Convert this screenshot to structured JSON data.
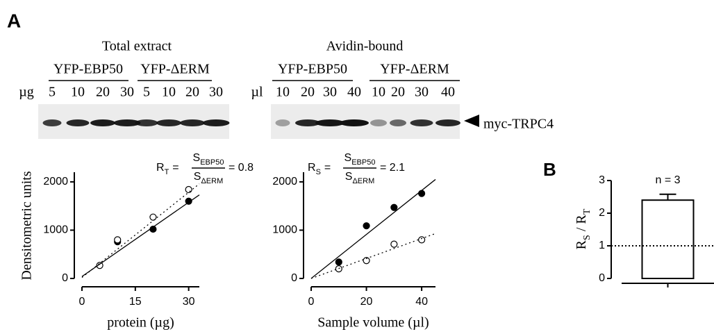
{
  "panels": [
    "A",
    "B"
  ],
  "blot_label": "myc-TRPC4",
  "blots": [
    {
      "title": "Total extract",
      "unit": "µg",
      "groups": [
        {
          "name": "YFP-EBP50",
          "lanes": [
            "5",
            "10",
            "20",
            "30"
          ]
        },
        {
          "name": "YFP-ΔERM",
          "lanes": [
            "5",
            "10",
            "20",
            "30"
          ]
        }
      ]
    },
    {
      "title": "Avidin-bound",
      "unit": "µl",
      "groups": [
        {
          "name": "YFP-EBP50",
          "lanes": [
            "10",
            "20",
            "30",
            "40"
          ]
        },
        {
          "name": "YFP-ΔERM",
          "lanes": [
            "10",
            "20",
            "30",
            "40"
          ]
        }
      ]
    }
  ],
  "chart_data": [
    {
      "type": "scatter",
      "xlabel": "protein (µg)",
      "ylabel": "Densitometric units",
      "xlim": [
        0,
        33
      ],
      "xticks": [
        0,
        15,
        30
      ],
      "ylim": [
        0,
        2200
      ],
      "yticks": [
        0,
        1000,
        2000
      ],
      "equation": {
        "lhs": "R",
        "lhs_sub": "T",
        "eq": "=",
        "num": "S",
        "num_sub": "EBP50",
        "den": "S",
        "den_sub": "ΔERM",
        "result": "= 0.8"
      },
      "series": [
        {
          "color": "#000000",
          "marker": "filled",
          "x": [
            10,
            20,
            30
          ],
          "values": [
            760,
            1020,
            1600
          ]
        },
        {
          "color": "#000000",
          "marker": "open",
          "x": [
            5,
            10,
            20,
            30
          ],
          "values": [
            270,
            800,
            1270,
            1840
          ]
        },
        {
          "color": "#000000",
          "marker": "none",
          "dash": false,
          "x": [
            0,
            33
          ],
          "values": [
            40,
            1730
          ]
        },
        {
          "color": "#000000",
          "marker": "none",
          "dash": true,
          "x": [
            0,
            33
          ],
          "values": [
            20,
            1960
          ]
        }
      ]
    },
    {
      "type": "scatter",
      "xlabel": "Sample volume (µl)",
      "xlim": [
        0,
        45
      ],
      "xticks": [
        0,
        20,
        40
      ],
      "ylim": [
        0,
        2200
      ],
      "yticks": [
        0,
        1000,
        2000
      ],
      "equation": {
        "lhs": "R",
        "lhs_sub": "S",
        "eq": "=",
        "num": "S",
        "num_sub": "EBP50",
        "den": "S",
        "den_sub": "ΔERM",
        "result": "= 2.1"
      },
      "series": [
        {
          "color": "#000000",
          "marker": "filled",
          "x": [
            10,
            20,
            30,
            40
          ],
          "values": [
            340,
            1090,
            1470,
            1760
          ]
        },
        {
          "color": "#000000",
          "marker": "open",
          "x": [
            10,
            20,
            30,
            40
          ],
          "values": [
            200,
            370,
            710,
            800
          ]
        },
        {
          "color": "#000000",
          "marker": "none",
          "dash": false,
          "x": [
            0,
            45
          ],
          "values": [
            0,
            2050
          ]
        },
        {
          "color": "#000000",
          "marker": "none",
          "dash": true,
          "x": [
            0,
            45
          ],
          "values": [
            0,
            930
          ]
        }
      ]
    },
    {
      "type": "bar",
      "ylabel": [
        [
          "R",
          "S"
        ],
        [
          " / R",
          "T"
        ]
      ],
      "categories": [
        null
      ],
      "values": [
        2.4
      ],
      "error": [
        0.18
      ],
      "color": "#ffffff",
      "ylim": [
        0,
        3
      ],
      "yticks": [
        0,
        1,
        2,
        3
      ],
      "refline": 1,
      "annotation": "n = 3"
    }
  ]
}
